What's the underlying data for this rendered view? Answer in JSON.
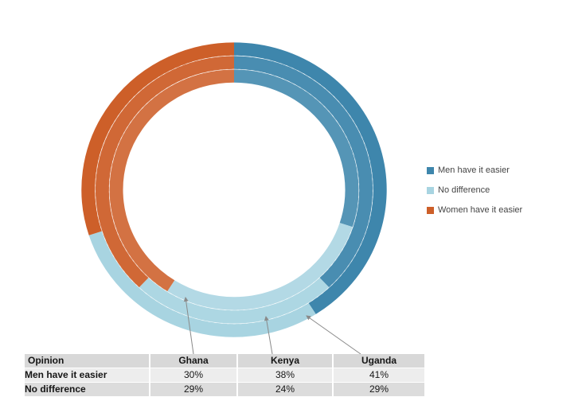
{
  "chart_data": {
    "type": "donut",
    "title": "",
    "description": "Three concentric donut rings (outer to inner: Uganda, Kenya, Ghana), segments start at 12 o'clock going clockwise",
    "categories": [
      "Men have it easier",
      "No difference",
      "Women have it easier"
    ],
    "colors": [
      "#3E86AC",
      "#A8D4E1",
      "#CD5F29"
    ],
    "series": [
      {
        "name": "Ghana",
        "ring": "inner",
        "values": [
          30,
          29,
          41
        ]
      },
      {
        "name": "Kenya",
        "ring": "middle",
        "values": [
          38,
          24,
          38
        ]
      },
      {
        "name": "Uganda",
        "ring": "outer",
        "values": [
          41,
          29,
          30
        ]
      }
    ],
    "legend": [
      {
        "label": "Men have it easier",
        "color": "#3E86AC"
      },
      {
        "label": "No difference",
        "color": "#A8D4E1"
      },
      {
        "label": "Women have it easier",
        "color": "#CD5F29"
      }
    ],
    "legend_position": "right",
    "leader_lines": [
      "Ghana -> inner ring",
      "Kenya -> middle ring",
      "Uganda -> outer ring"
    ]
  },
  "table": {
    "headers": [
      "Opinion",
      "Ghana",
      "Kenya",
      "Uganda"
    ],
    "rows": [
      {
        "label": "Men have it easier",
        "values": [
          "30%",
          "38%",
          "41%"
        ]
      },
      {
        "label": "No difference",
        "values": [
          "29%",
          "24%",
          "29%"
        ]
      }
    ]
  }
}
